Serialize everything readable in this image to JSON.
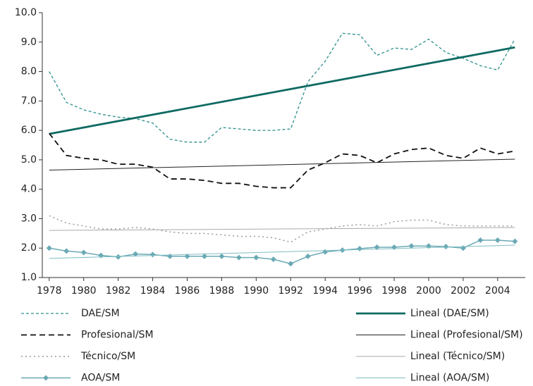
{
  "chart_data": {
    "type": "line",
    "x": [
      1978,
      1979,
      1980,
      1981,
      1982,
      1983,
      1984,
      1985,
      1986,
      1987,
      1988,
      1989,
      1990,
      1991,
      1992,
      1993,
      1994,
      1995,
      1996,
      1997,
      1998,
      1999,
      2000,
      2001,
      2002,
      2003,
      2004,
      2005
    ],
    "xlim": [
      1977.6,
      2005.6
    ],
    "xticks": [
      1978,
      1980,
      1982,
      1984,
      1986,
      1988,
      1990,
      1992,
      1994,
      1996,
      1998,
      2000,
      2002,
      2004
    ],
    "ylim": [
      1,
      10
    ],
    "yticks": [
      {
        "value": 1,
        "label": "1.0"
      },
      {
        "value": 2,
        "label": "2.0"
      },
      {
        "value": 3,
        "label": "3.0"
      },
      {
        "value": 4,
        "label": "4.0"
      },
      {
        "value": 5,
        "label": "5.0"
      },
      {
        "value": 6,
        "label": "6.0"
      },
      {
        "value": 7,
        "label": "7.0"
      },
      {
        "value": 8,
        "label": "8.0"
      },
      {
        "value": 9,
        "label": "9.0"
      },
      {
        "value": 10,
        "label": "10.0"
      }
    ],
    "series": [
      {
        "name": "DAE/SM",
        "color": "#2e8f8c",
        "dash": "4,3",
        "line_width": 1.3,
        "values": [
          8.0,
          6.95,
          6.7,
          6.55,
          6.45,
          6.4,
          6.25,
          5.7,
          5.6,
          5.6,
          6.1,
          6.05,
          6.0,
          6.0,
          6.05,
          7.65,
          8.35,
          9.3,
          9.25,
          8.55,
          8.8,
          8.75,
          9.1,
          8.65,
          8.45,
          8.2,
          8.05,
          9.1
        ]
      },
      {
        "name": "Lineal (DAE/SM)",
        "color": "#0e6a62",
        "line_width": 2.8,
        "x": [
          1978,
          2005
        ],
        "values": [
          5.88,
          8.82
        ]
      },
      {
        "name": "Profesional/SM",
        "color": "#111111",
        "dash": "8,5",
        "line_width": 1.8,
        "values": [
          5.9,
          5.15,
          5.05,
          5.0,
          4.85,
          4.85,
          4.75,
          4.35,
          4.35,
          4.3,
          4.2,
          4.2,
          4.1,
          4.05,
          4.05,
          4.65,
          4.9,
          5.2,
          5.15,
          4.9,
          5.2,
          5.35,
          5.4,
          5.15,
          5.05,
          5.4,
          5.2,
          5.3
        ]
      },
      {
        "name": "Lineal (Profesional/SM)",
        "color": "#222222",
        "line_width": 1,
        "x": [
          1978,
          2005
        ],
        "values": [
          4.65,
          5.02
        ]
      },
      {
        "name": "Técnico/SM",
        "color": "#9a9a9a",
        "dash": "2,4",
        "line_width": 1.5,
        "values": [
          3.1,
          2.85,
          2.75,
          2.65,
          2.65,
          2.7,
          2.65,
          2.55,
          2.5,
          2.5,
          2.45,
          2.4,
          2.4,
          2.35,
          2.2,
          2.55,
          2.65,
          2.75,
          2.8,
          2.75,
          2.9,
          2.95,
          2.95,
          2.8,
          2.75,
          2.75,
          2.75,
          2.75
        ]
      },
      {
        "name": "Lineal (Técnico/SM)",
        "color": "#aaaaaa",
        "line_width": 1,
        "x": [
          1978,
          2005
        ],
        "values": [
          2.6,
          2.7
        ]
      },
      {
        "name": "AOA/SM",
        "color": "#6aa9b4",
        "marker": "diamond",
        "line_width": 1.5,
        "values": [
          2.0,
          1.9,
          1.85,
          1.75,
          1.7,
          1.8,
          1.78,
          1.72,
          1.72,
          1.72,
          1.72,
          1.68,
          1.68,
          1.62,
          1.47,
          1.72,
          1.87,
          1.93,
          1.98,
          2.03,
          2.03,
          2.07,
          2.07,
          2.05,
          2.0,
          2.27,
          2.27,
          2.23
        ]
      },
      {
        "name": "Lineal (AOA/SM)",
        "color": "#7fbcc4",
        "line_width": 1,
        "x": [
          1978,
          2005
        ],
        "values": [
          1.65,
          2.1
        ]
      }
    ]
  }
}
